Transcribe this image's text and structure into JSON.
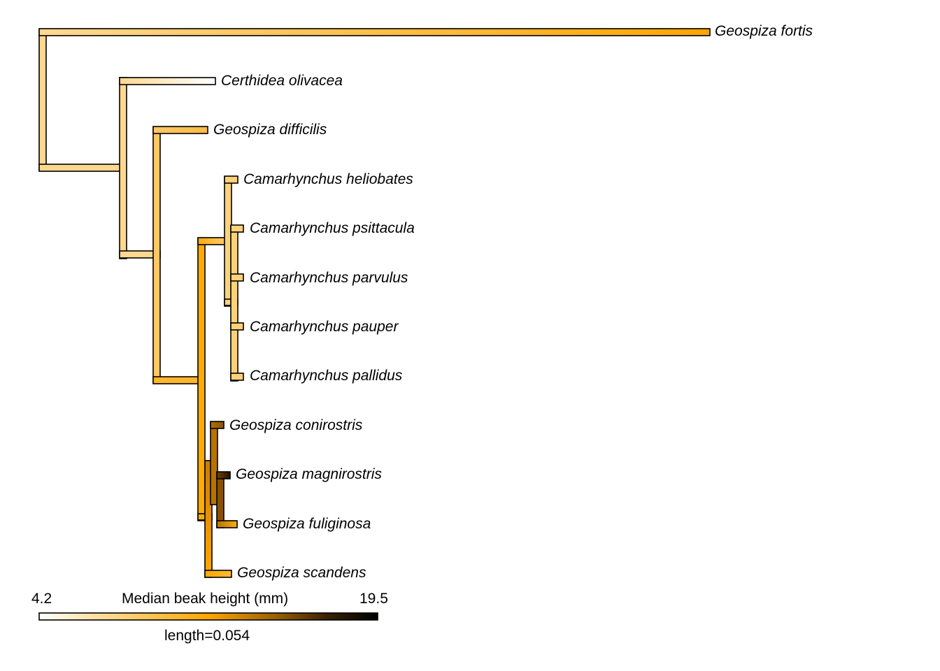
{
  "tree": {
    "tips": [
      {
        "name": "Geospiza fortis"
      },
      {
        "name": "Certhidea olivacea"
      },
      {
        "name": "Geospiza difficilis"
      },
      {
        "name": "Camarhynchus heliobates"
      },
      {
        "name": "Camarhynchus psittacula"
      },
      {
        "name": "Camarhynchus parvulus"
      },
      {
        "name": "Camarhynchus pauper"
      },
      {
        "name": "Camarhynchus pallidus"
      },
      {
        "name": "Geospiza conirostris"
      },
      {
        "name": "Geospiza magnirostris"
      },
      {
        "name": "Geospiza fuliginosa"
      },
      {
        "name": "Geospiza scandens"
      }
    ]
  },
  "legend": {
    "title": "Median beak height (mm)",
    "min_label": "4.2",
    "max_label": "19.5",
    "length_label": "length=0.054",
    "gradient_colors": [
      "#ffffff",
      "#ffe3a8",
      "#ffc04a",
      "#ffa500",
      "#9a5f00",
      "#3a2200",
      "#000000"
    ]
  }
}
